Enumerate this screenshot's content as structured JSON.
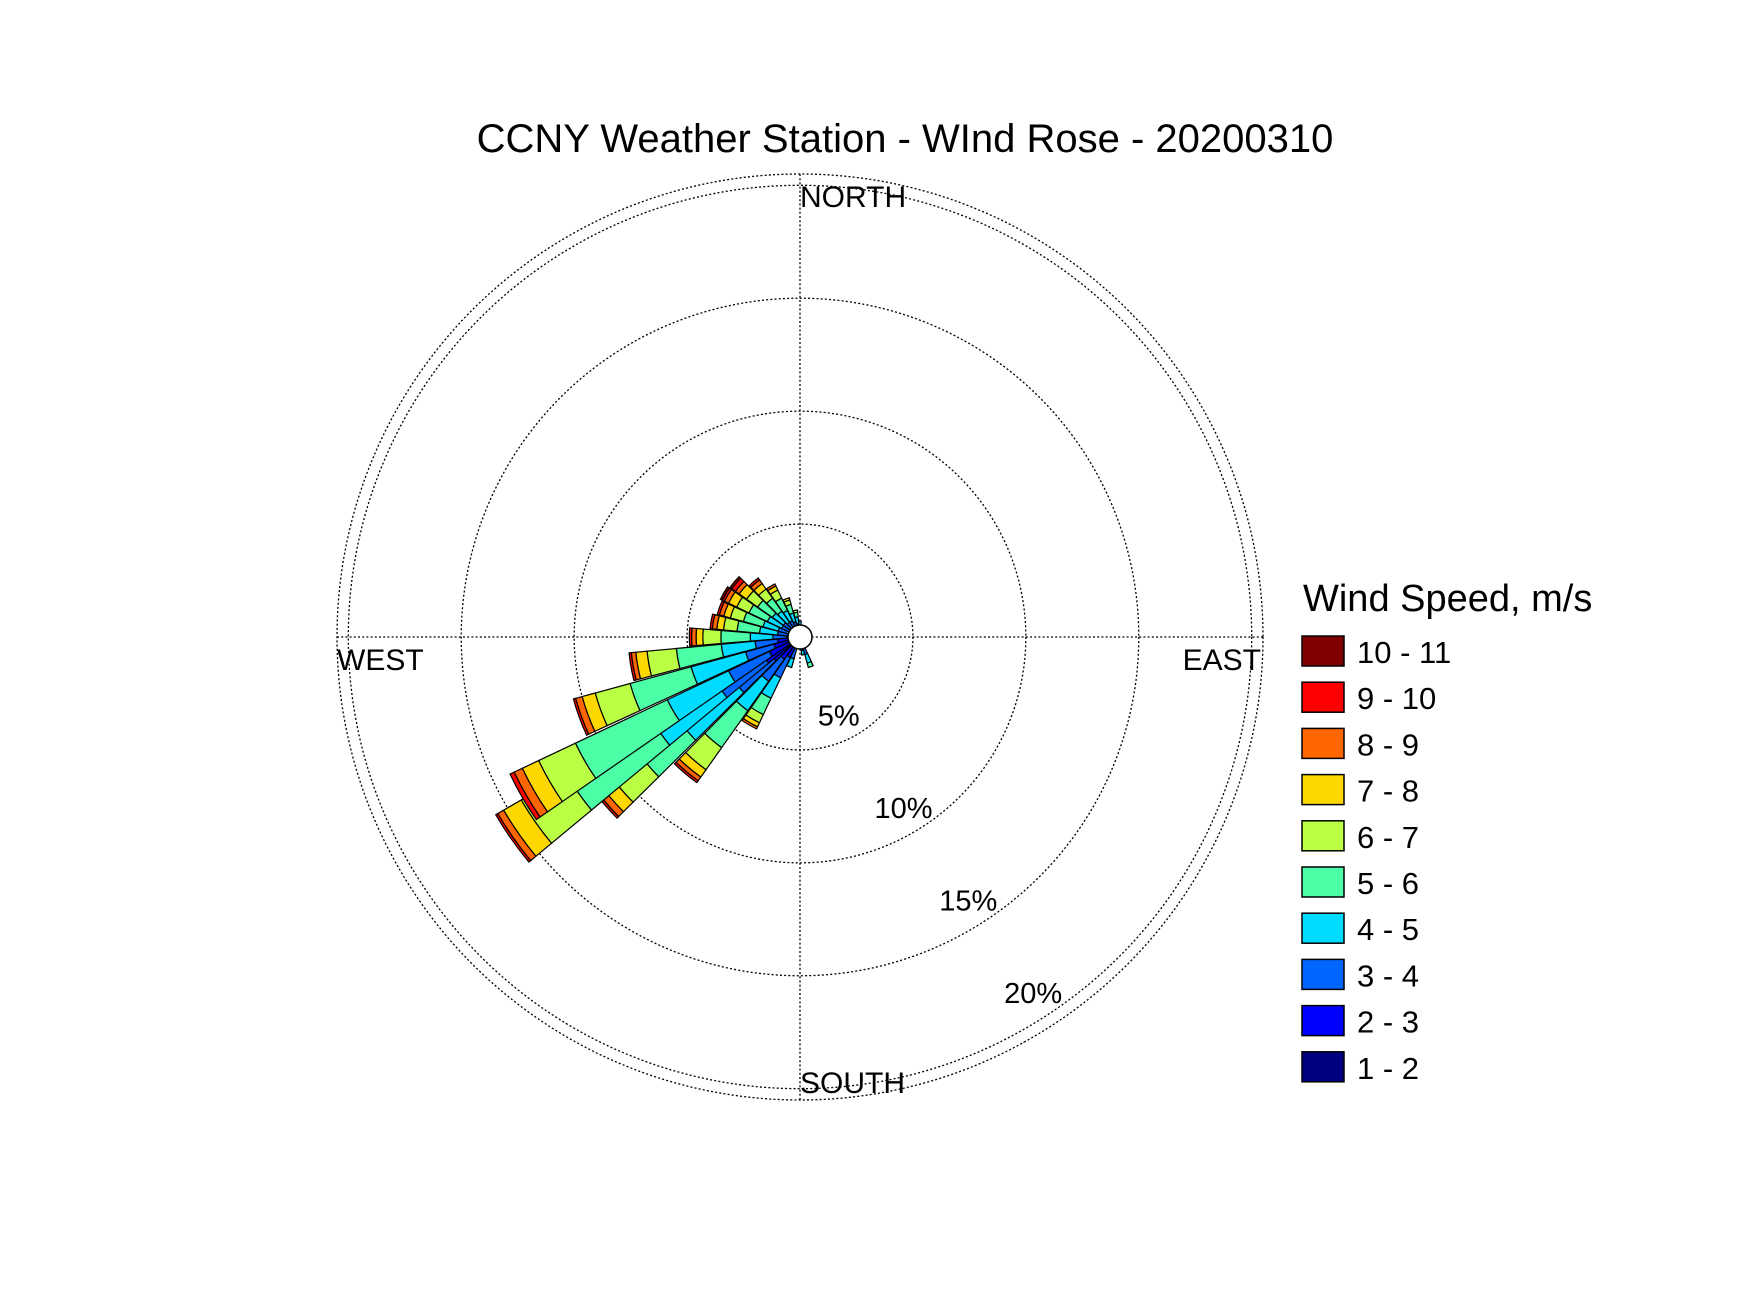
{
  "chart_data": {
    "type": "windrose",
    "title": "CCNY Weather Station - WInd Rose - 20200310",
    "directions": {
      "north": "NORTH",
      "south": "SOUTH",
      "east": "EAST",
      "west": "WEST"
    },
    "radial_labels": [
      "5%",
      "10%",
      "15%",
      "20%"
    ],
    "radial_values": [
      5,
      10,
      15,
      20
    ],
    "rmax": 20.5,
    "legend_title": "Wind Speed, m/s",
    "legend_position": "right",
    "bins": [
      {
        "label": "1 - 2",
        "color": "#000080"
      },
      {
        "label": "2 - 3",
        "color": "#0000ff"
      },
      {
        "label": "3 - 4",
        "color": "#0066ff"
      },
      {
        "label": "4 - 5",
        "color": "#00dcff"
      },
      {
        "label": "5 - 6",
        "color": "#4cffa6"
      },
      {
        "label": "6 - 7",
        "color": "#bbff44"
      },
      {
        "label": "7 - 8",
        "color": "#ffd700"
      },
      {
        "label": "8 - 9",
        "color": "#ff6600"
      },
      {
        "label": "9 - 10",
        "color": "#ff0000"
      },
      {
        "label": "10 - 11",
        "color": "#800000"
      }
    ],
    "sectors": [
      {
        "dir": 180,
        "cum": [
          0.2,
          0.3
        ]
      },
      {
        "dir": 190,
        "cum": [
          0.2,
          0.4,
          0.5
        ]
      },
      {
        "dir": 200,
        "cum": [
          0.2,
          0.5,
          1.0,
          1.4
        ]
      },
      {
        "dir": 210,
        "cum": [
          0.3,
          1.0,
          2.0,
          3.0,
          3.8,
          4.2,
          4.4,
          4.5
        ]
      },
      {
        "dir": 220,
        "cum": [
          0.3,
          1.2,
          2.4,
          4.0,
          6.0,
          7.2,
          7.6,
          7.8,
          7.9
        ]
      },
      {
        "dir": 230,
        "cum": [
          0.4,
          1.5,
          3.5,
          6.5,
          8.8,
          10.4,
          11.0,
          11.3,
          11.4
        ]
      },
      {
        "dir": 235,
        "cum": [
          0.4,
          1.8,
          4.2,
          7.5,
          12.0,
          14.3,
          15.2,
          15.5,
          15.6
        ]
      },
      {
        "dir": 240,
        "cum": [
          0.4,
          1.5,
          3.5,
          6.5,
          11.0,
          12.8,
          13.6,
          14.0,
          14.2
        ]
      },
      {
        "dir": 250,
        "cum": [
          0.3,
          1.2,
          2.5,
          5.0,
          7.8,
          9.4,
          10.0,
          10.3,
          10.4
        ]
      },
      {
        "dir": 260,
        "cum": [
          0.3,
          1.0,
          2.0,
          3.5,
          5.5,
          6.8,
          7.3,
          7.5,
          7.6
        ]
      },
      {
        "dir": 270,
        "cum": [
          0.2,
          0.6,
          1.2,
          2.2,
          3.5,
          4.3,
          4.6,
          4.8,
          4.9
        ]
      },
      {
        "dir": 280,
        "cum": [
          0.2,
          0.5,
          1.0,
          1.8,
          2.8,
          3.4,
          3.7,
          3.9,
          4.0
        ]
      },
      {
        "dir": 290,
        "cum": [
          0.2,
          0.5,
          1.0,
          1.7,
          2.6,
          3.2,
          3.5,
          3.7,
          3.8
        ]
      },
      {
        "dir": 300,
        "cum": [
          0.2,
          0.5,
          0.9,
          1.6,
          2.5,
          3.1,
          3.5,
          3.7,
          3.8,
          3.9
        ]
      },
      {
        "dir": 310,
        "cum": [
          0.2,
          0.4,
          0.9,
          1.5,
          2.3,
          2.9,
          3.3,
          3.5,
          3.7,
          3.8
        ]
      },
      {
        "dir": 320,
        "cum": [
          0.2,
          0.4,
          0.8,
          1.4,
          2.1,
          2.6,
          2.9,
          3.1,
          3.2
        ]
      },
      {
        "dir": 330,
        "cum": [
          0.2,
          0.4,
          0.8,
          1.3,
          1.9,
          2.3,
          2.5,
          2.6
        ]
      },
      {
        "dir": 340,
        "cum": [
          0.2,
          0.4,
          0.7,
          1.1,
          1.5,
          1.7,
          1.8
        ]
      },
      {
        "dir": 350,
        "cum": [
          0.2,
          0.3,
          0.6,
          0.9,
          1.1,
          1.2
        ]
      },
      {
        "dir": 0,
        "cum": [
          0.2,
          0.3,
          0.5,
          0.7
        ]
      },
      {
        "dir": 10,
        "cum": [
          0.2,
          0.3,
          0.4
        ]
      },
      {
        "dir": 20,
        "cum": [
          0.2,
          0.3
        ]
      },
      {
        "dir": 30,
        "cum": [
          0.2
        ]
      },
      {
        "dir": 60,
        "cum": [
          0.2
        ]
      },
      {
        "dir": 90,
        "cum": [
          0.2
        ]
      },
      {
        "dir": 120,
        "cum": [
          0.2
        ]
      },
      {
        "dir": 150,
        "cum": [
          0.2,
          0.3
        ]
      },
      {
        "dir": 160,
        "cum": [
          0.2,
          0.5,
          0.8,
          1.2,
          1.4
        ]
      },
      {
        "dir": 170,
        "cum": [
          0.2,
          0.4,
          0.6,
          0.8
        ]
      }
    ]
  }
}
